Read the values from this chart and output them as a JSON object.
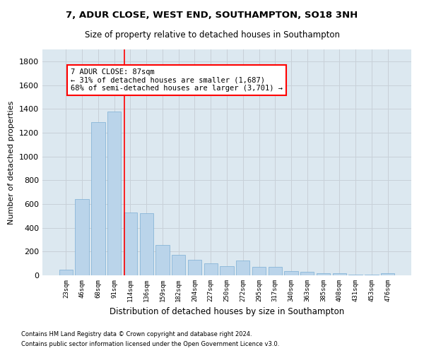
{
  "title1": "7, ADUR CLOSE, WEST END, SOUTHAMPTON, SO18 3NH",
  "title2": "Size of property relative to detached houses in Southampton",
  "xlabel": "Distribution of detached houses by size in Southampton",
  "ylabel": "Number of detached properties",
  "categories": [
    "23sqm",
    "46sqm",
    "68sqm",
    "91sqm",
    "114sqm",
    "136sqm",
    "159sqm",
    "182sqm",
    "204sqm",
    "227sqm",
    "250sqm",
    "272sqm",
    "295sqm",
    "317sqm",
    "340sqm",
    "363sqm",
    "385sqm",
    "408sqm",
    "431sqm",
    "453sqm",
    "476sqm"
  ],
  "values": [
    50,
    640,
    1290,
    1375,
    530,
    520,
    255,
    170,
    130,
    100,
    80,
    125,
    70,
    70,
    35,
    28,
    20,
    15,
    5,
    5,
    15
  ],
  "bar_color": "#bad4ea",
  "bar_edge_color": "#7baed4",
  "vline_x": 3.65,
  "vline_color": "red",
  "annotation_text": "7 ADUR CLOSE: 87sqm\n← 31% of detached houses are smaller (1,687)\n68% of semi-detached houses are larger (3,701) →",
  "annotation_box_color": "white",
  "annotation_box_edge_color": "red",
  "ylim": [
    0,
    1900
  ],
  "yticks": [
    0,
    200,
    400,
    600,
    800,
    1000,
    1200,
    1400,
    1600,
    1800
  ],
  "grid_color": "#c8d0d8",
  "bg_color": "#dce8f0",
  "footer1": "Contains HM Land Registry data © Crown copyright and database right 2024.",
  "footer2": "Contains public sector information licensed under the Open Government Licence v3.0."
}
